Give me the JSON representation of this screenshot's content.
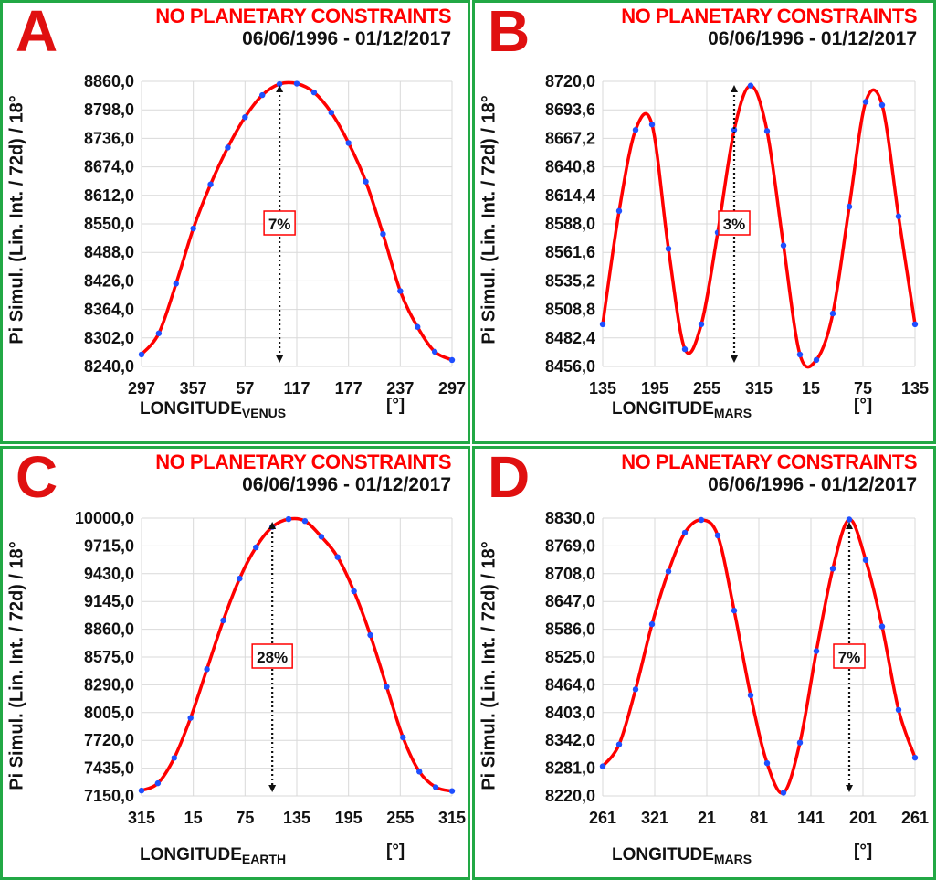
{
  "colors": {
    "curve": "#ff0000",
    "points": "#1f4fff",
    "border": "#22a845",
    "grid": "#d9d9d9"
  },
  "chart_data": [
    {
      "panel": "A",
      "type": "line",
      "title": "NO PLANETARY CONSTRAINTS",
      "subtitle": "06/06/1996 - 01/12/2017",
      "ylabel": "Pi Simul. (Lin. Int. / 72d) / 18°",
      "xlabel_main": "LONGITUDE",
      "xlabel_sub": "VENUS",
      "xunit": "[°]",
      "y_ticks": [
        "8860,0",
        "8798,0",
        "8736,0",
        "8674,0",
        "8612,0",
        "8550,0",
        "8488,0",
        "8426,0",
        "8364,0",
        "8302,0",
        "8240,0"
      ],
      "x_ticks": [
        "297",
        "357",
        "57",
        "117",
        "177",
        "237",
        "297"
      ],
      "ylim": [
        8240,
        8860
      ],
      "percent_label": "7%",
      "arrow_index": 8,
      "grid": true,
      "values": [
        8266,
        8312,
        8420,
        8540,
        8636,
        8716,
        8782,
        8830,
        8854,
        8855,
        8836,
        8792,
        8726,
        8642,
        8528,
        8404,
        8326,
        8272,
        8254
      ]
    },
    {
      "panel": "B",
      "type": "line",
      "title": "NO PLANETARY CONSTRAINTS",
      "subtitle": "06/06/1996 - 01/12/2017",
      "ylabel": "Pi Simul. (Lin. Int. / 72d) / 18°",
      "xlabel_main": "LONGITUDE",
      "xlabel_sub": "MARS",
      "xunit": "[°]",
      "y_ticks": [
        "8720,0",
        "8693,6",
        "8667,2",
        "8640,8",
        "8614,4",
        "8588,0",
        "8561,6",
        "8535,2",
        "8508,8",
        "8482,4",
        "8456,0"
      ],
      "x_ticks": [
        "135",
        "195",
        "255",
        "315",
        "15",
        "75",
        "135"
      ],
      "ylim": [
        8456,
        8720
      ],
      "percent_label": "3%",
      "arrow_index": 8,
      "grid": true,
      "values": [
        8495,
        8600,
        8675,
        8680,
        8565,
        8472,
        8495,
        8580,
        8675,
        8716,
        8674,
        8568,
        8467,
        8462,
        8505,
        8604,
        8701,
        8698,
        8595,
        8495
      ]
    },
    {
      "panel": "C",
      "type": "line",
      "title": "NO PLANETARY CONSTRAINTS",
      "subtitle": "06/06/1996 - 01/12/2017",
      "ylabel": "Pi Simul. (Lin. Int. / 72d) / 18°",
      "xlabel_main": "LONGITUDE",
      "xlabel_sub": "EARTH",
      "xunit": "[°]",
      "y_ticks": [
        "10000,0",
        "9715,0",
        "9430,0",
        "9145,0",
        "8860,0",
        "8575,0",
        "8290,0",
        "8005,0",
        "7720,0",
        "7435,0",
        "7150,0"
      ],
      "x_ticks": [
        "315",
        "15",
        "75",
        "135",
        "195",
        "255",
        "315"
      ],
      "ylim": [
        7150,
        10000
      ],
      "percent_label": "28%",
      "arrow_index": 8,
      "grid": true,
      "values": [
        7205,
        7280,
        7540,
        7950,
        8450,
        8950,
        9380,
        9700,
        9910,
        9990,
        9970,
        9810,
        9600,
        9250,
        8800,
        8270,
        7750,
        7400,
        7240,
        7200
      ]
    },
    {
      "panel": "D",
      "type": "line",
      "title": "NO PLANETARY CONSTRAINTS",
      "subtitle": "06/06/1996 - 01/12/2017",
      "ylabel": "Pi Simul. (Lin. Int. / 72d) / 18°",
      "xlabel_main": "LONGITUDE",
      "xlabel_sub": "MARS",
      "xunit": "[°]",
      "y_ticks": [
        "8830,0",
        "8769,0",
        "8708,0",
        "8647,0",
        "8586,0",
        "8525,0",
        "8464,0",
        "8403,0",
        "8342,0",
        "8281,0",
        "8220,0"
      ],
      "x_ticks": [
        "261",
        "321",
        "21",
        "81",
        "141",
        "201",
        "261"
      ],
      "ylim": [
        8220,
        8830
      ],
      "percent_label": "7%",
      "arrow_index": 15,
      "grid": true,
      "values": [
        8285,
        8333,
        8454,
        8597,
        8713,
        8798,
        8826,
        8792,
        8627,
        8441,
        8292,
        8227,
        8337,
        8538,
        8719,
        8827,
        8738,
        8592,
        8409,
        8304
      ]
    }
  ]
}
